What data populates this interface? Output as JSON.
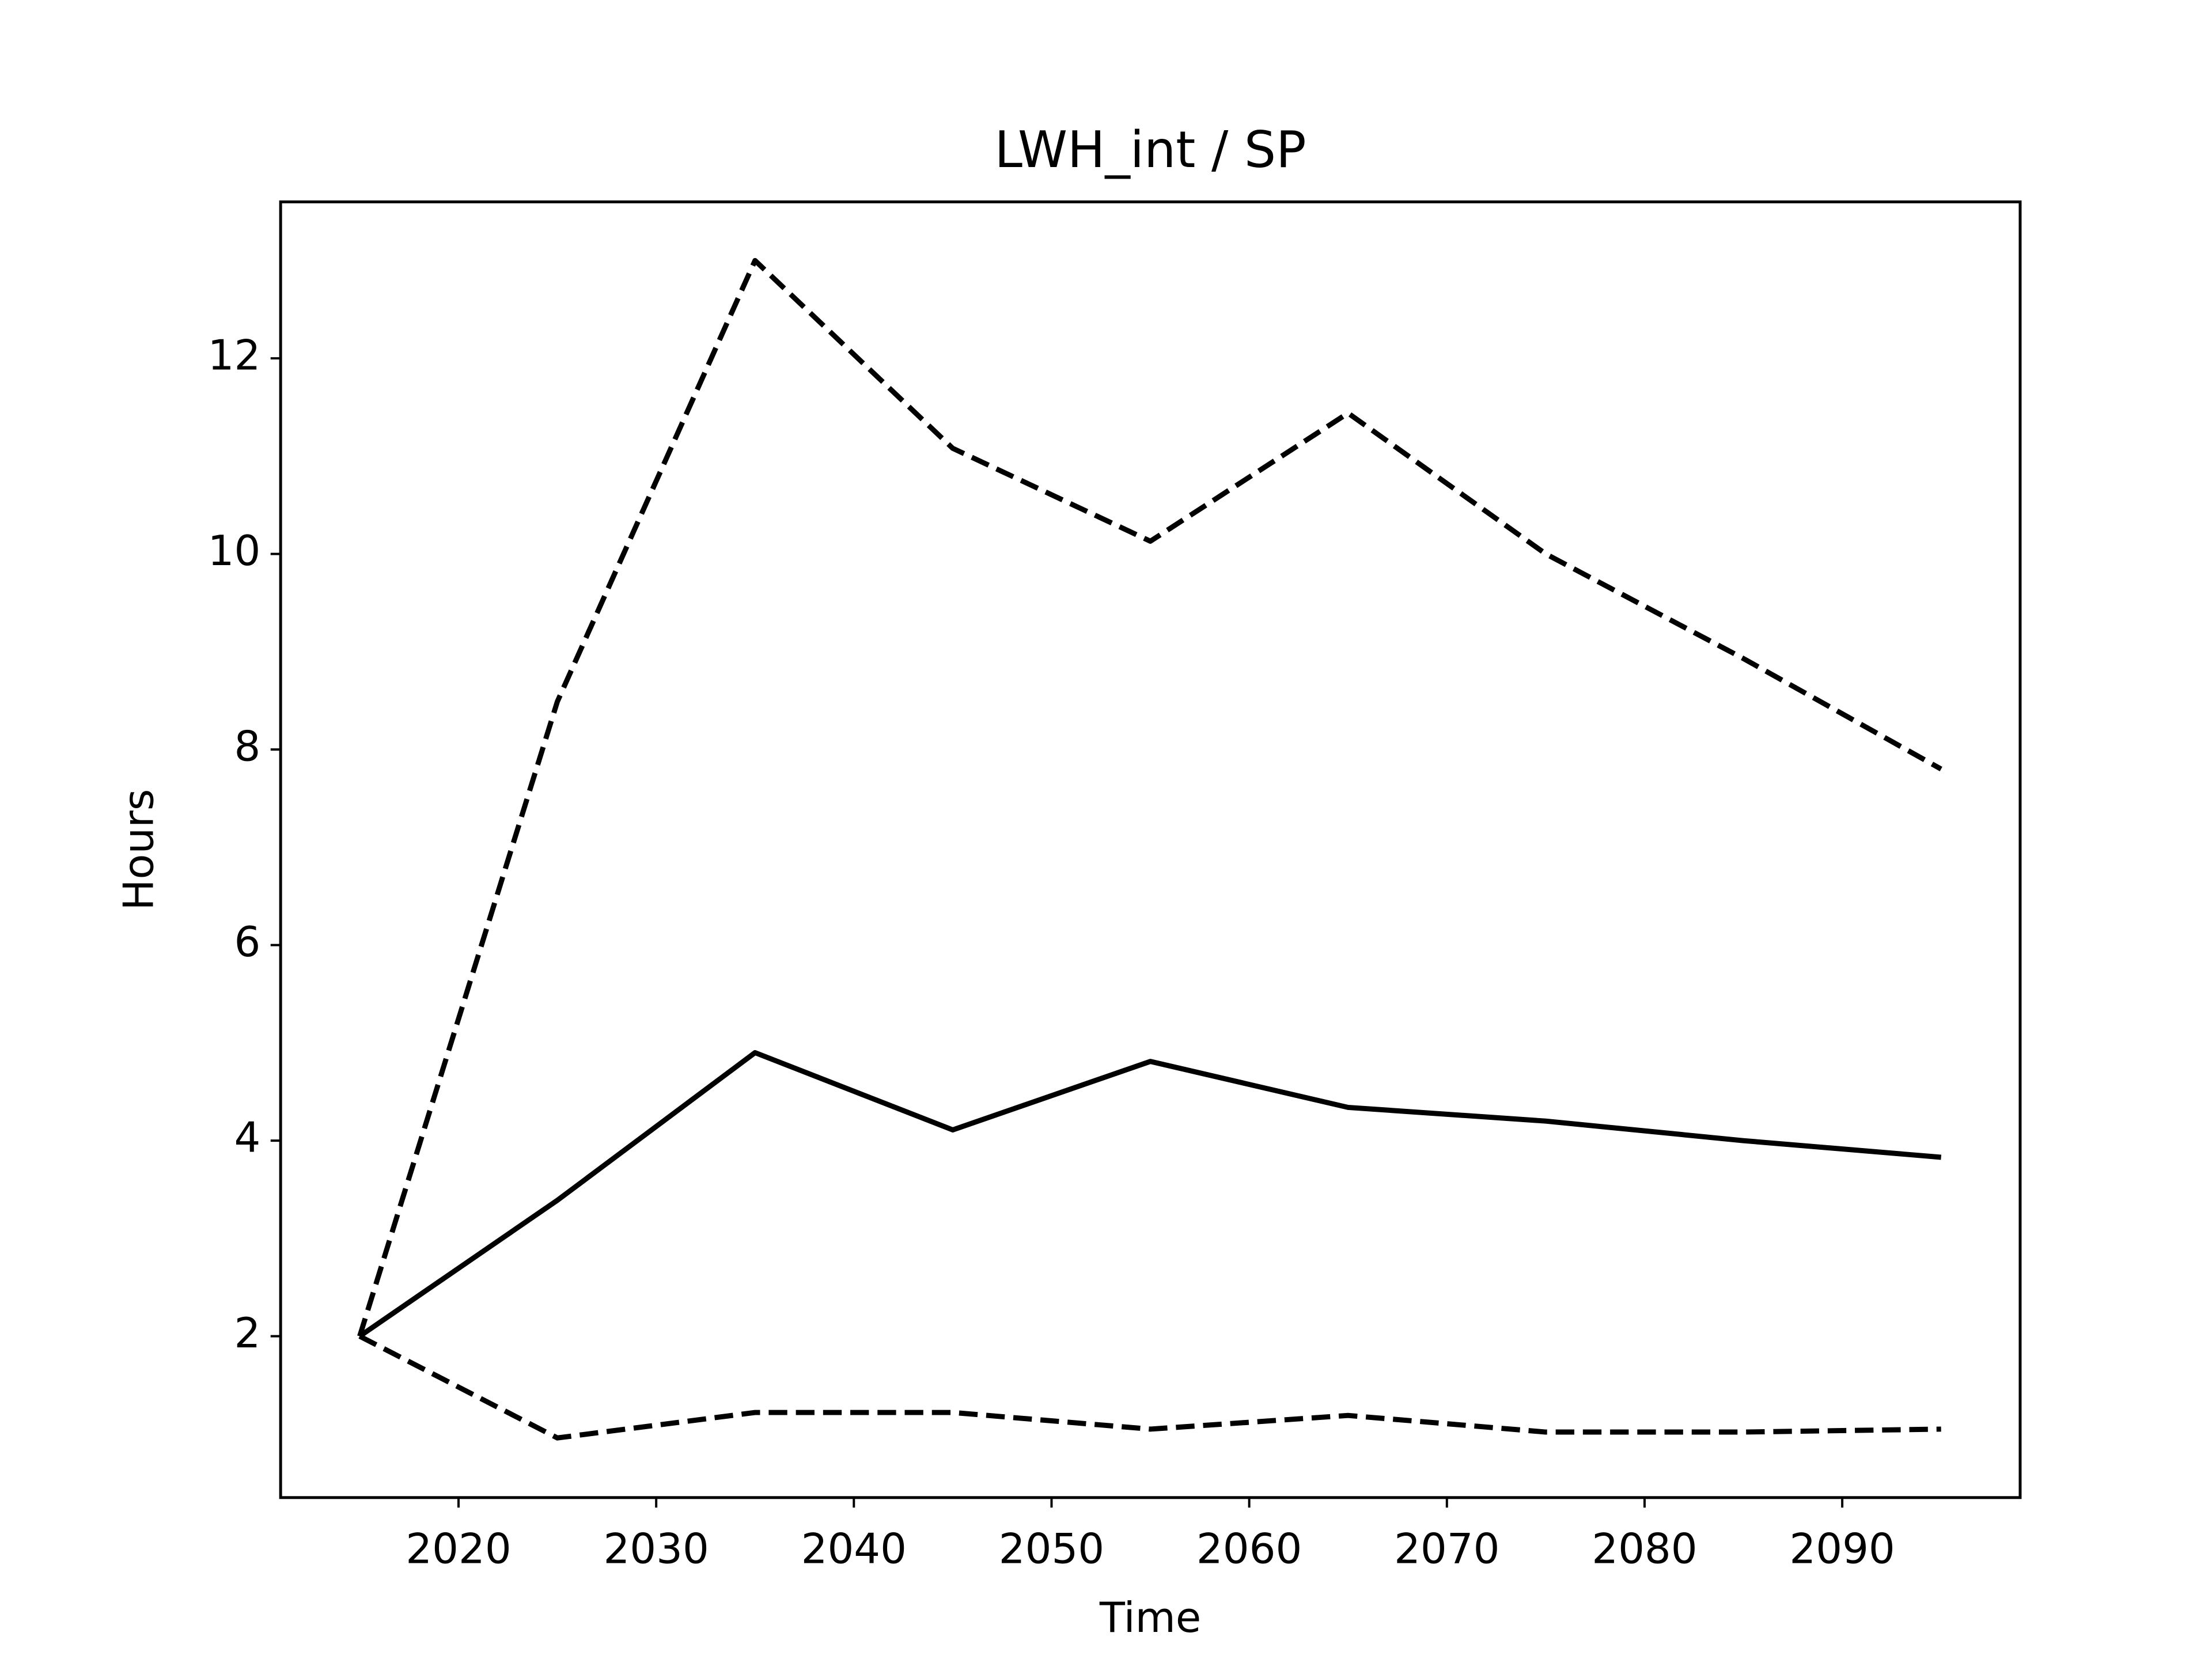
{
  "chart_data": {
    "type": "line",
    "title": "LWH_int / SP",
    "xlabel": "Time",
    "ylabel": "Hours",
    "x": [
      2015,
      2025,
      2035,
      2045,
      2055,
      2065,
      2075,
      2085,
      2095
    ],
    "series": [
      {
        "color": "#000000",
        "linestyle": "solid",
        "values": [
          2.0,
          3.39,
          4.9,
          4.11,
          4.81,
          4.34,
          4.2,
          4.0,
          3.83
        ]
      },
      {
        "color": "#000000",
        "linestyle": "dashed",
        "values": [
          2.0,
          8.49,
          13.0,
          11.08,
          10.13,
          11.44,
          10.0,
          8.93,
          7.8
        ]
      },
      {
        "color": "#000000",
        "linestyle": "dashed",
        "values": [
          2.0,
          0.96,
          1.22,
          1.22,
          1.05,
          1.19,
          1.02,
          1.02,
          1.05
        ]
      }
    ],
    "xlim": [
      2011,
      2099
    ],
    "ylim": [
      0.35,
      13.6
    ],
    "xticks": [
      2020,
      2030,
      2040,
      2050,
      2060,
      2070,
      2080,
      2090
    ],
    "yticks": [
      2,
      4,
      6,
      8,
      10,
      12
    ],
    "grid": false
  }
}
